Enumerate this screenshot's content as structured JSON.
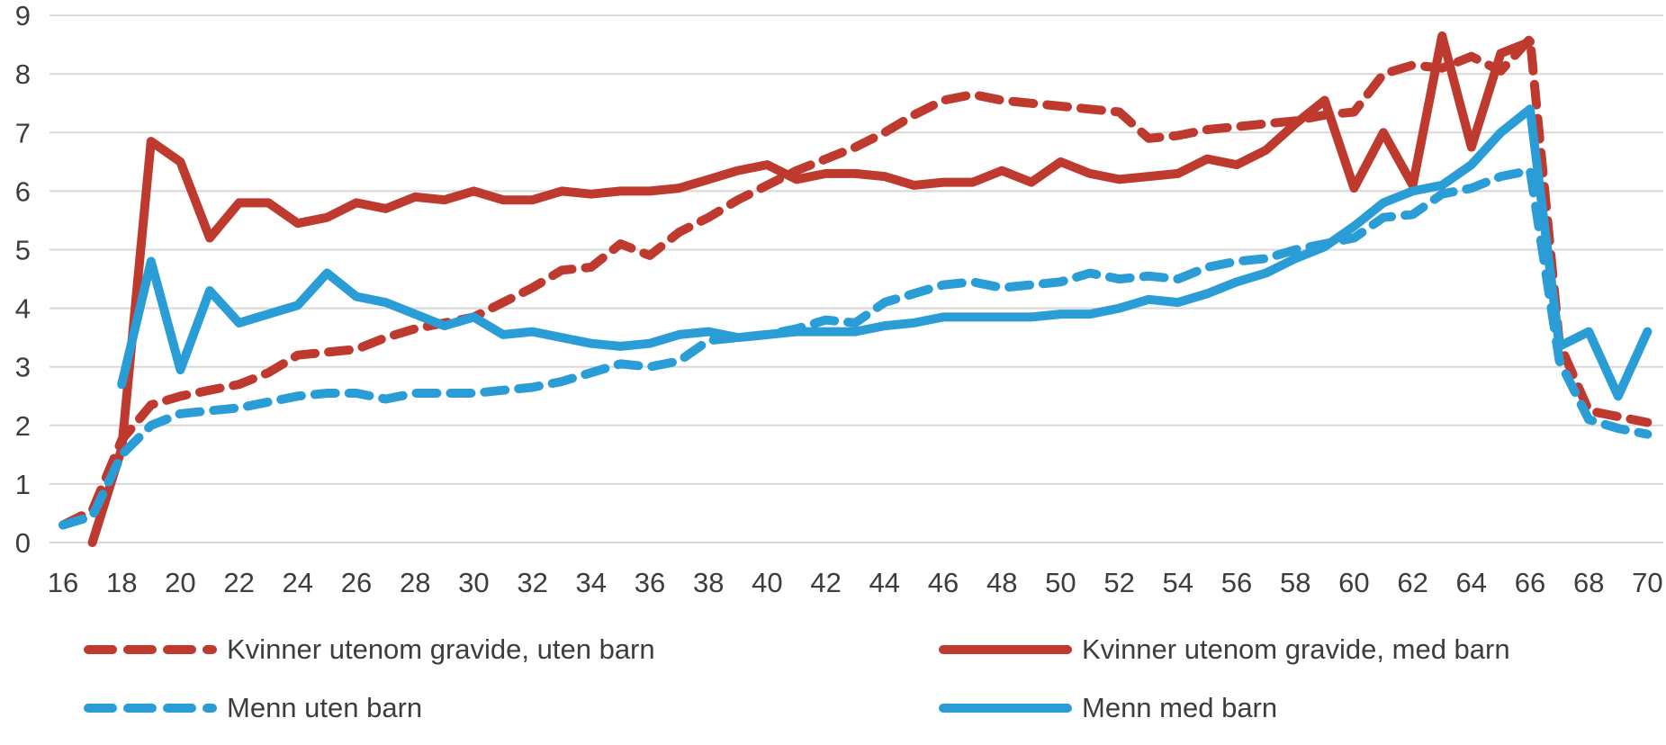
{
  "colors": {
    "red": "#be3a2e",
    "blue": "#2a9cd6",
    "gridline": "#d8d8d8",
    "tick_text": "#3d3d3d",
    "background": "#ffffff"
  },
  "chart_data": {
    "type": "line",
    "title": "",
    "xlabel": "",
    "ylabel": "",
    "x_range": [
      16,
      70
    ],
    "ylim": [
      0,
      9
    ],
    "grid": "horizontal",
    "legend_position": "bottom",
    "y_ticks": [
      "0",
      "1",
      "2",
      "3",
      "4",
      "5",
      "6",
      "7",
      "8",
      "9"
    ],
    "x_ticks": [
      "16",
      "18",
      "20",
      "22",
      "24",
      "26",
      "28",
      "30",
      "32",
      "34",
      "36",
      "38",
      "40",
      "42",
      "44",
      "46",
      "48",
      "50",
      "52",
      "54",
      "56",
      "58",
      "60",
      "62",
      "64",
      "66",
      "68",
      "70"
    ],
    "x": [
      16,
      17,
      18,
      19,
      20,
      21,
      22,
      23,
      24,
      25,
      26,
      27,
      28,
      29,
      30,
      31,
      32,
      33,
      34,
      35,
      36,
      37,
      38,
      39,
      40,
      41,
      42,
      43,
      44,
      45,
      46,
      47,
      48,
      49,
      50,
      51,
      52,
      53,
      54,
      55,
      56,
      57,
      58,
      59,
      60,
      61,
      62,
      63,
      64,
      65,
      66,
      67,
      68,
      69,
      70
    ],
    "series": [
      {
        "name": "Kvinner utenom gravide, uten barn",
        "slug": "kvinner-utenom-gravide-uten-barn",
        "style": "dashed",
        "color": "#be3a2e",
        "values": [
          0.3,
          0.55,
          1.75,
          2.35,
          2.5,
          2.6,
          2.7,
          2.9,
          3.2,
          3.25,
          3.3,
          3.5,
          3.65,
          3.75,
          3.85,
          4.1,
          4.35,
          4.65,
          4.7,
          5.1,
          4.9,
          5.3,
          5.55,
          5.85,
          6.1,
          6.35,
          6.55,
          6.75,
          7.0,
          7.3,
          7.55,
          7.65,
          7.55,
          7.5,
          7.45,
          7.4,
          7.35,
          6.9,
          6.95,
          7.05,
          7.1,
          7.15,
          7.2,
          7.3,
          7.35,
          8.0,
          8.15,
          8.1,
          8.3,
          8.05,
          8.6,
          3.4,
          2.25,
          2.15,
          2.05
        ]
      },
      {
        "name": "Kvinner utenom gravide, med barn",
        "slug": "kvinner-utenom-gravide-med-barn",
        "style": "solid",
        "color": "#be3a2e",
        "values": [
          null,
          0.0,
          1.6,
          6.85,
          6.5,
          5.2,
          5.8,
          5.8,
          5.45,
          5.55,
          5.8,
          5.7,
          5.9,
          5.85,
          6.0,
          5.85,
          5.85,
          6.0,
          5.95,
          6.0,
          6.0,
          6.05,
          6.2,
          6.35,
          6.45,
          6.2,
          6.3,
          6.3,
          6.25,
          6.1,
          6.15,
          6.15,
          6.35,
          6.15,
          6.5,
          6.3,
          6.2,
          6.25,
          6.3,
          6.55,
          6.45,
          6.7,
          7.15,
          7.55,
          6.05,
          7.0,
          6.1,
          8.65,
          6.75,
          8.35,
          8.55,
          null,
          null,
          null,
          null
        ]
      },
      {
        "name": "Menn uten barn",
        "slug": "menn-uten-barn",
        "style": "dashed",
        "color": "#2a9cd6",
        "values": [
          0.3,
          0.45,
          1.5,
          2.0,
          2.2,
          2.25,
          2.3,
          2.4,
          2.5,
          2.55,
          2.55,
          2.45,
          2.55,
          2.55,
          2.55,
          2.6,
          2.65,
          2.75,
          2.9,
          3.05,
          3.0,
          3.1,
          3.45,
          3.5,
          3.55,
          3.65,
          3.8,
          3.75,
          4.1,
          4.25,
          4.4,
          4.45,
          4.35,
          4.4,
          4.45,
          4.6,
          4.5,
          4.55,
          4.5,
          4.7,
          4.8,
          4.85,
          5.0,
          5.1,
          5.2,
          5.55,
          5.6,
          5.95,
          6.05,
          6.25,
          6.35,
          3.1,
          2.1,
          1.95,
          1.85
        ]
      },
      {
        "name": "Menn med barn",
        "slug": "menn-med-barn",
        "style": "solid",
        "color": "#2a9cd6",
        "values": [
          null,
          null,
          2.7,
          4.8,
          2.95,
          4.3,
          3.75,
          3.9,
          4.05,
          4.6,
          4.2,
          4.1,
          3.9,
          3.7,
          3.85,
          3.55,
          3.6,
          3.5,
          3.4,
          3.35,
          3.4,
          3.55,
          3.6,
          3.5,
          3.55,
          3.6,
          3.6,
          3.6,
          3.7,
          3.75,
          3.85,
          3.85,
          3.85,
          3.85,
          3.9,
          3.9,
          4.0,
          4.15,
          4.1,
          4.25,
          4.45,
          4.6,
          4.85,
          5.05,
          5.4,
          5.8,
          6.0,
          6.1,
          6.45,
          7.0,
          7.4,
          3.35,
          3.6,
          2.5,
          3.6
        ]
      }
    ]
  }
}
